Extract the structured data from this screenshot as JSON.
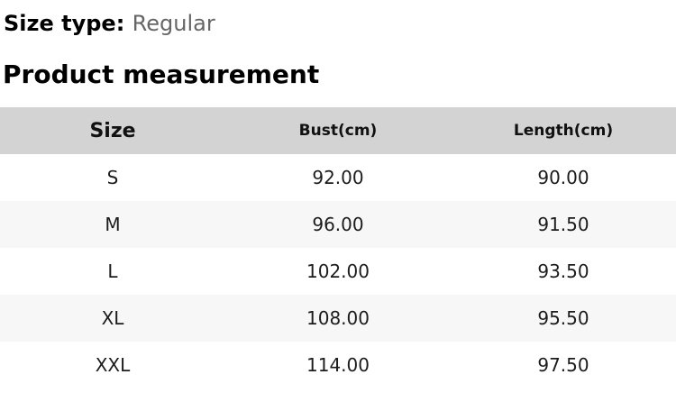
{
  "colors": {
    "page_bg": "#ffffff",
    "header_row_bg": "#d3d3d3",
    "zebra_row_bg": "#f7f7f7",
    "heading_text": "#000000",
    "muted_value_text": "#666666",
    "cell_text": "#1c1c1c"
  },
  "size_type": {
    "label": "Size type:",
    "value": "Regular"
  },
  "section_title": "Product measurement",
  "measurement_table": {
    "columns": [
      "Size",
      "Bust(cm)",
      "Length(cm)"
    ],
    "rows": [
      [
        "S",
        "92.00",
        "90.00"
      ],
      [
        "M",
        "96.00",
        "91.50"
      ],
      [
        "L",
        "102.00",
        "93.50"
      ],
      [
        "XL",
        "108.00",
        "95.50"
      ],
      [
        "XXL",
        "114.00",
        "97.50"
      ]
    ]
  }
}
